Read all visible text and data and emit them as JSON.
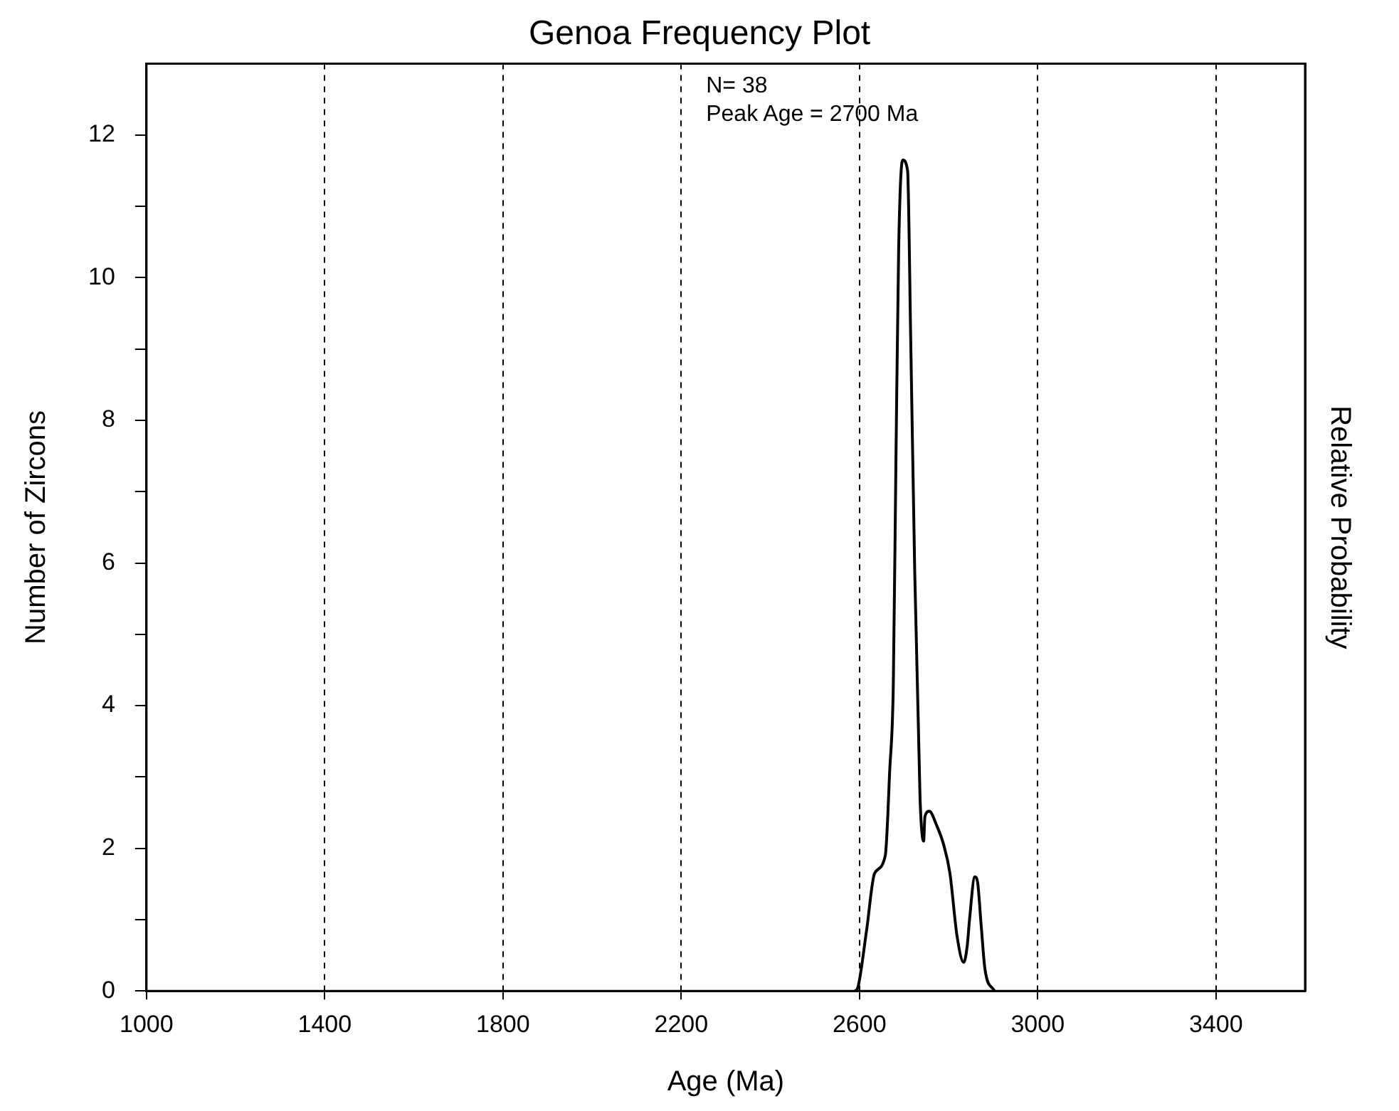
{
  "chart_data": {
    "type": "line",
    "title": "Genoa Frequency Plot",
    "xlabel": "Age (Ma)",
    "ylabel": "Number of Zircons",
    "y2label": "Relative Probability",
    "annotations": [
      "N= 38",
      "Peak Age = 2700 Ma"
    ],
    "x": [
      2590,
      2596,
      2616,
      2634,
      2658,
      2668,
      2676,
      2682,
      2688,
      2697,
      2708,
      2715,
      2724,
      2736,
      2744,
      2747,
      2757,
      2772,
      2789,
      2803,
      2819,
      2834,
      2842,
      2847,
      2859,
      2865,
      2873,
      2882,
      2903
    ],
    "series": [
      {
        "color": "#000000",
        "values": [
          0,
          0.04,
          0.85,
          1.65,
          1.9,
          3.1,
          4.3,
          7.5,
          10.4,
          11.65,
          11.5,
          9.15,
          5.9,
          2.7,
          2.1,
          2.45,
          2.52,
          2.34,
          2.05,
          1.65,
          0.77,
          0.4,
          0.64,
          1.0,
          1.6,
          1.53,
          0.93,
          0.29,
          0
        ]
      }
    ],
    "xlim": [
      1000,
      3600
    ],
    "xticks": [
      1000,
      1400,
      1800,
      2200,
      2600,
      3000,
      3400
    ],
    "ylim": [
      0,
      13
    ],
    "yticks": [
      0,
      {
        "value": 1,
        "label": null
      },
      2,
      {
        "value": 3,
        "label": null
      },
      4,
      {
        "value": 5,
        "label": null
      },
      6,
      {
        "value": 7,
        "label": null
      },
      8,
      {
        "value": 9,
        "label": null
      },
      10,
      {
        "value": 11,
        "label": null
      },
      12
    ],
    "grid": "x",
    "legend": false,
    "marker": "none",
    "line_style": "solid"
  }
}
